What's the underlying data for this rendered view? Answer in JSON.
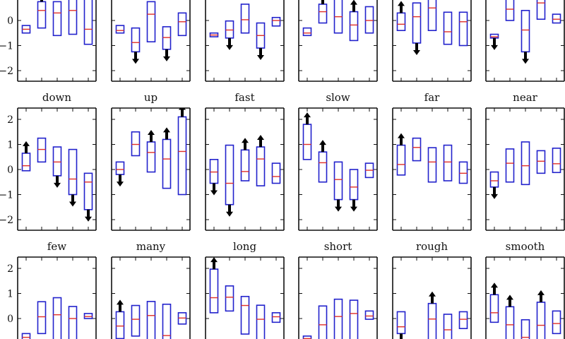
{
  "chart_data": {
    "type": "box",
    "ylim": [
      -2.45,
      2.45
    ],
    "yticks": [
      -2,
      -1,
      0,
      1,
      2
    ],
    "ytick_labels": [
      "−2",
      "−1",
      "0",
      "1",
      "2"
    ],
    "colors": {
      "box": "#2222cc",
      "median": "#e0302a",
      "arrow": "#000000",
      "axis": "#111111"
    },
    "box_fields": [
      "q1",
      "median",
      "q3",
      "outlier_arrow"
    ],
    "panels": [
      {
        "title": "",
        "boxes": [
          [
            -0.5,
            -0.35,
            -0.2,
            null
          ],
          [
            -0.3,
            0.4,
            0.75,
            "up"
          ],
          [
            -0.6,
            0.3,
            0.75,
            null
          ],
          [
            -0.55,
            0.4,
            1.0,
            null
          ],
          [
            -0.95,
            -0.35,
            1.0,
            null
          ]
        ]
      },
      {
        "title": "",
        "boxes": [
          [
            -0.5,
            -0.4,
            -0.2,
            null
          ],
          [
            -1.25,
            -0.88,
            -0.3,
            "down"
          ],
          [
            -0.85,
            0.25,
            0.75,
            null
          ],
          [
            -1.15,
            -0.68,
            -0.25,
            "down"
          ],
          [
            -0.6,
            -0.05,
            0.3,
            null
          ]
        ]
      },
      {
        "title": "",
        "boxes": [
          [
            -0.65,
            -0.58,
            -0.5,
            null
          ],
          [
            -0.7,
            -0.38,
            -0.02,
            "down"
          ],
          [
            -0.5,
            0.03,
            0.65,
            null
          ],
          [
            -1.1,
            -0.6,
            -0.1,
            "down"
          ],
          [
            -0.22,
            0.0,
            0.12,
            null
          ]
        ]
      },
      {
        "title": "",
        "boxes": [
          [
            -0.6,
            -0.5,
            -0.3,
            null
          ],
          [
            -0.1,
            0.35,
            0.65,
            "up"
          ],
          [
            -0.5,
            0.15,
            1.0,
            null
          ],
          [
            -0.8,
            -0.18,
            0.35,
            "up"
          ],
          [
            -0.5,
            0.0,
            0.55,
            null
          ]
        ]
      },
      {
        "title": "",
        "boxes": [
          [
            -0.4,
            -0.15,
            0.3,
            "up"
          ],
          [
            -0.9,
            0.15,
            0.7,
            "down"
          ],
          [
            -0.4,
            0.5,
            1.0,
            null
          ],
          [
            -0.95,
            -0.45,
            0.33,
            null
          ],
          [
            -1.0,
            -0.05,
            0.33,
            null
          ]
        ]
      },
      {
        "title": "",
        "boxes": [
          [
            -0.7,
            -0.65,
            -0.55,
            "down"
          ],
          [
            0.0,
            0.45,
            1.0,
            null
          ],
          [
            -1.25,
            -0.38,
            0.4,
            "down"
          ],
          [
            0.05,
            0.7,
            1.0,
            null
          ],
          [
            -0.1,
            0.05,
            0.25,
            null
          ]
        ]
      },
      {
        "title": "down",
        "boxes": [
          [
            -0.05,
            0.15,
            0.65,
            "up"
          ],
          [
            0.3,
            0.8,
            1.25,
            null
          ],
          [
            -0.25,
            0.3,
            0.9,
            "down"
          ],
          [
            -1.0,
            -0.38,
            0.8,
            "down"
          ],
          [
            -1.6,
            -0.5,
            -0.15,
            "down"
          ]
        ]
      },
      {
        "title": "up",
        "boxes": [
          [
            -0.2,
            0.0,
            0.3,
            "down"
          ],
          [
            0.55,
            1.0,
            1.5,
            null
          ],
          [
            -0.1,
            0.68,
            1.1,
            "up"
          ],
          [
            -0.75,
            0.42,
            1.2,
            "up"
          ],
          [
            -1.0,
            0.72,
            2.1,
            "up"
          ]
        ]
      },
      {
        "title": "fast",
        "boxes": [
          [
            -0.55,
            -0.1,
            0.4,
            "down"
          ],
          [
            -1.4,
            -0.55,
            0.97,
            "down"
          ],
          [
            -0.45,
            -0.08,
            0.78,
            "up"
          ],
          [
            -0.65,
            0.42,
            0.9,
            "up"
          ],
          [
            -0.55,
            -0.28,
            0.25,
            null
          ]
        ]
      },
      {
        "title": "slow",
        "boxes": [
          [
            0.4,
            1.0,
            1.8,
            "up"
          ],
          [
            -0.5,
            0.27,
            0.7,
            "up"
          ],
          [
            -1.2,
            -0.4,
            0.3,
            "down"
          ],
          [
            -1.2,
            -0.7,
            0.0,
            "down"
          ],
          [
            -0.32,
            -0.03,
            0.25,
            null
          ]
        ]
      },
      {
        "title": "far",
        "boxes": [
          [
            -0.22,
            0.2,
            0.97,
            "up"
          ],
          [
            0.35,
            0.88,
            1.25,
            null
          ],
          [
            -0.5,
            0.3,
            0.87,
            null
          ],
          [
            -0.45,
            0.3,
            0.97,
            null
          ],
          [
            -0.55,
            -0.15,
            0.3,
            null
          ]
        ]
      },
      {
        "title": "near",
        "boxes": [
          [
            -0.7,
            -0.45,
            -0.1,
            "down"
          ],
          [
            -0.5,
            0.25,
            0.82,
            null
          ],
          [
            -0.6,
            0.15,
            1.1,
            null
          ],
          [
            -0.15,
            0.33,
            0.75,
            null
          ],
          [
            -0.12,
            0.23,
            0.85,
            null
          ]
        ]
      },
      {
        "title": "few",
        "boxes": [
          [
            -0.9,
            -0.75,
            -0.6,
            null
          ],
          [
            -0.6,
            0.07,
            0.67,
            null
          ],
          [
            -1.0,
            0.15,
            0.83,
            null
          ],
          [
            -1.0,
            0.0,
            0.48,
            null
          ],
          [
            0.0,
            0.08,
            0.2,
            null
          ]
        ]
      },
      {
        "title": "many",
        "boxes": [
          [
            -0.8,
            -0.3,
            0.27,
            "up"
          ],
          [
            -0.7,
            -0.03,
            0.52,
            null
          ],
          [
            -1.0,
            0.12,
            0.68,
            null
          ],
          [
            -1.0,
            -0.68,
            0.57,
            null
          ],
          [
            -0.22,
            0.02,
            0.23,
            null
          ]
        ]
      },
      {
        "title": "long",
        "boxes": [
          [
            0.23,
            0.83,
            1.97,
            "up"
          ],
          [
            0.3,
            0.85,
            1.3,
            null
          ],
          [
            -0.62,
            0.52,
            0.88,
            null
          ],
          [
            -1.0,
            -0.03,
            0.53,
            null
          ],
          [
            -0.15,
            0.07,
            0.23,
            null
          ]
        ]
      },
      {
        "title": "short",
        "boxes": [
          [
            -1.0,
            -0.8,
            -0.7,
            null
          ],
          [
            -1.0,
            -0.25,
            0.5,
            null
          ],
          [
            -1.0,
            0.08,
            0.77,
            null
          ],
          [
            -1.0,
            0.2,
            0.73,
            null
          ],
          [
            -0.03,
            0.1,
            0.3,
            null
          ]
        ]
      },
      {
        "title": "rough",
        "boxes": [
          [
            -0.6,
            -0.33,
            0.27,
            "down"
          ],
          null,
          [
            -1.0,
            -0.02,
            0.6,
            "up"
          ],
          [
            -1.0,
            -0.45,
            0.17,
            null
          ],
          [
            -0.4,
            -0.03,
            0.27,
            null
          ]
        ]
      },
      {
        "title": "smooth",
        "boxes": [
          [
            -0.15,
            0.23,
            0.95,
            "up"
          ],
          [
            -1.0,
            -0.25,
            0.47,
            "up"
          ],
          [
            -1.0,
            -0.75,
            -0.05,
            null
          ],
          [
            -1.0,
            -0.27,
            0.65,
            "up"
          ],
          [
            -0.6,
            -0.2,
            0.3,
            null
          ]
        ]
      }
    ]
  }
}
